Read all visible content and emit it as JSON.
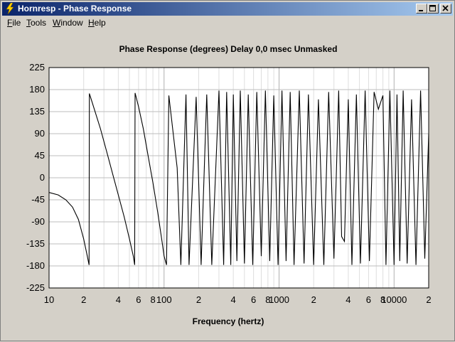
{
  "window": {
    "title": "Hornresp - Phase Response"
  },
  "menu": [
    {
      "label": "File"
    },
    {
      "label": "Tools"
    },
    {
      "label": "Window"
    },
    {
      "label": "Help"
    }
  ],
  "chart_data": {
    "type": "line",
    "title": "Phase Response (degrees)   Delay 0,0 msec   Unmasked",
    "xlabel": "Frequency (hertz)",
    "ylabel": "",
    "x_scale": "log",
    "xlim": [
      10,
      20000
    ],
    "ylim": [
      -225,
      225
    ],
    "yticks": [
      225,
      180,
      135,
      90,
      45,
      0,
      -45,
      -90,
      -135,
      -180,
      -225
    ],
    "xtick_labels": [
      {
        "value": 10,
        "label": "10"
      },
      {
        "value": 20,
        "label": "2"
      },
      {
        "value": 40,
        "label": "4"
      },
      {
        "value": 60,
        "label": "6"
      },
      {
        "value": 80,
        "label": "8"
      },
      {
        "value": 100,
        "label": "100"
      },
      {
        "value": 200,
        "label": "2"
      },
      {
        "value": 400,
        "label": "4"
      },
      {
        "value": 600,
        "label": "6"
      },
      {
        "value": 800,
        "label": "8"
      },
      {
        "value": 1000,
        "label": "1000"
      },
      {
        "value": 2000,
        "label": "2"
      },
      {
        "value": 4000,
        "label": "4"
      },
      {
        "value": 6000,
        "label": "6"
      },
      {
        "value": 8000,
        "label": "8"
      },
      {
        "value": 10000,
        "label": "10000"
      },
      {
        "value": 20000,
        "label": "2"
      }
    ],
    "grid": true,
    "series": [
      {
        "x": [
          10,
          12,
          14,
          16,
          18,
          20,
          21.5,
          22.3,
          22.4,
          24,
          28,
          32,
          36,
          40,
          45,
          50,
          54,
          55.5,
          56,
          60,
          66,
          72,
          80,
          88,
          96,
          100,
          105,
          110,
          130,
          140,
          155,
          165,
          190,
          210,
          235,
          260,
          300,
          330,
          350,
          380,
          400,
          430,
          460,
          500,
          540,
          590,
          640,
          700,
          760,
          830,
          900,
          980,
          1060,
          1150,
          1250,
          1350,
          1500,
          1650,
          1800,
          2000,
          2200,
          2450,
          2700,
          3000,
          3300,
          3500,
          3700,
          4000,
          4300,
          4700,
          5100,
          5600,
          6100,
          6700,
          7300,
          8000,
          8500,
          9200,
          10000,
          10600,
          11200,
          12000,
          13000,
          14200,
          15500,
          17000,
          18500,
          20000
        ],
        "y": [
          -30,
          -35,
          -45,
          -60,
          -85,
          -125,
          -160,
          -178,
          172,
          150,
          100,
          50,
          5,
          -35,
          -80,
          -125,
          -160,
          -178,
          173,
          145,
          100,
          50,
          -10,
          -70,
          -130,
          -160,
          -178,
          168,
          20,
          -178,
          170,
          -178,
          165,
          -178,
          170,
          -178,
          178,
          -178,
          175,
          -178,
          170,
          -170,
          178,
          -175,
          170,
          -178,
          175,
          -160,
          178,
          -170,
          168,
          -178,
          178,
          -170,
          175,
          -178,
          178,
          -175,
          170,
          -178,
          160,
          -178,
          175,
          -165,
          178,
          -120,
          -130,
          160,
          -178,
          170,
          -175,
          178,
          -170,
          175,
          140,
          168,
          -178,
          178,
          -178,
          170,
          -170,
          178,
          -175,
          160,
          -178,
          178,
          -165,
          90
        ]
      }
    ]
  }
}
